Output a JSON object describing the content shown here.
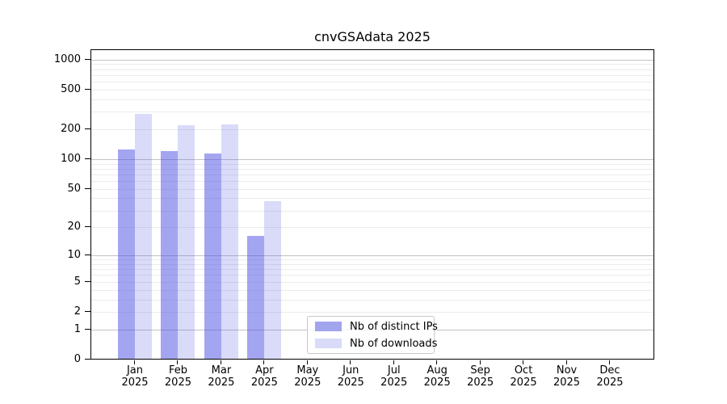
{
  "title": "cnvGSAdata 2025",
  "chart_data": {
    "type": "bar",
    "title": "cnvGSAdata 2025",
    "scale": "log1p",
    "categories": [
      "Jan 2025",
      "Feb 2025",
      "Mar 2025",
      "Apr 2025",
      "May 2025",
      "Jun 2025",
      "Jul 2025",
      "Aug 2025",
      "Sep 2025",
      "Oct 2025",
      "Nov 2025",
      "Dec 2025"
    ],
    "x_tick_month": [
      "Jan",
      "Feb",
      "Mar",
      "Apr",
      "May",
      "Jun",
      "Jul",
      "Aug",
      "Sep",
      "Oct",
      "Nov",
      "Dec"
    ],
    "x_tick_year": "2025",
    "series": [
      {
        "name": "Nb of distinct IPs",
        "key": "distinct-ips",
        "color": "#a2a4ee",
        "fill": "rgba(71,75,225,0.5)",
        "values": [
          124,
          118,
          112,
          16,
          0,
          0,
          0,
          0,
          0,
          0,
          0,
          0
        ]
      },
      {
        "name": "Nb of downloads",
        "key": "downloads",
        "color": "#d9dbf8",
        "fill": "rgba(65,75,220,0.2)",
        "values": [
          280,
          215,
          220,
          37,
          0,
          0,
          0,
          0,
          0,
          0,
          0,
          0
        ]
      }
    ],
    "yticks": [
      0,
      1,
      2,
      5,
      10,
      20,
      50,
      100,
      200,
      500,
      1000
    ],
    "ylim": [
      0,
      1270
    ],
    "grid": {
      "major_color": "#c3c3c3",
      "minor_color": "#ececec",
      "enabled": true
    },
    "legend_position": "lower center",
    "xlabel": "",
    "ylabel": ""
  }
}
